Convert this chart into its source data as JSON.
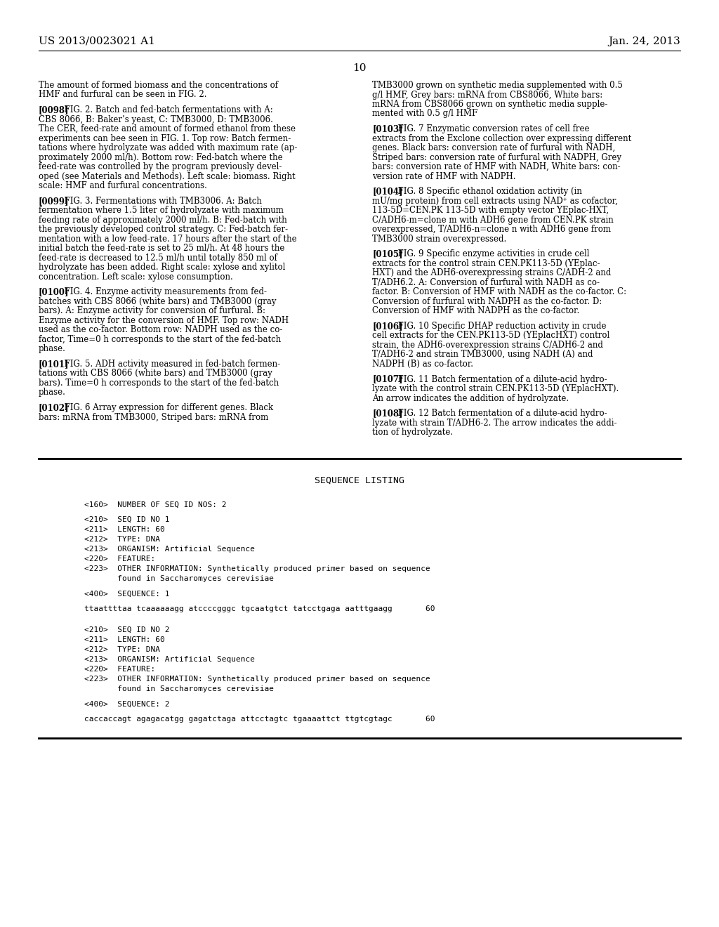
{
  "bg_color": "#ffffff",
  "patent_number": "US 2013/0023021 A1",
  "date": "Jan. 24, 2013",
  "page_number": "10",
  "header_font": 11,
  "body_font": 8.5,
  "mono_font": 8.0,
  "left_col_text": [
    "The amount of formed biomass and the concentrations of",
    "HMF and furfural can be seen in FIG. 2.",
    "",
    "[0098]  FIG. 2. Batch and fed-batch fermentations with A:",
    "CBS 8066, B: Baker’s yeast, C: TMB3000, D: TMB3006.",
    "The CER, feed-rate and amount of formed ethanol from these",
    "experiments can bee seen in FIG. 1. Top row: Batch fermen-",
    "tations where hydrolyzate was added with maximum rate (ap-",
    "proximately 2000 ml/h). Bottom row: Fed-batch where the",
    "feed-rate was controlled by the program previously devel-",
    "oped (see Materials and Methods). Left scale: biomass. Right",
    "scale: HMF and furfural concentrations.",
    "",
    "[0099]  FIG. 3. Fermentations with TMB3006. A: Batch",
    "fermentation where 1.5 liter of hydrolyzate with maximum",
    "feeding rate of approximately 2000 ml/h. B: Fed-batch with",
    "the previously developed control strategy. C: Fed-batch fer-",
    "mentation with a low feed-rate. 17 hours after the start of the",
    "initial batch the feed-rate is set to 25 ml/h. At 48 hours the",
    "feed-rate is decreased to 12.5 ml/h until totally 850 ml of",
    "hydrolyzate has been added. Right scale: xylose and xylitol",
    "concentration. Left scale: xylose consumption.",
    "",
    "[0100]  FIG. 4. Enzyme activity measurements from fed-",
    "batches with CBS 8066 (white bars) and TMB3000 (gray",
    "bars). A: Enzyme activity for conversion of furfural. B:",
    "Enzyme activity for the conversion of HMF. Top row: NADH",
    "used as the co-factor. Bottom row: NADPH used as the co-",
    "factor, Time=0 h corresponds to the start of the fed-batch",
    "phase.",
    "",
    "[0101]  FIG. 5. ADH activity measured in fed-batch fermen-",
    "tations with CBS 8066 (white bars) and TMB3000 (gray",
    "bars). Time=0 h corresponds to the start of the fed-batch",
    "phase.",
    "",
    "[0102]  FIG. 6 Array expression for different genes. Black",
    "bars: mRNA from TMB3000, Striped bars: mRNA from"
  ],
  "right_col_text": [
    "TMB3000 grown on synthetic media supplemented with 0.5",
    "g/l HMF, Grey bars: mRNA from CBS8066, White bars:",
    "mRNA from CBS8066 grown on synthetic media supple-",
    "mented with 0.5 g/l HMF",
    "",
    "[0103]  FIG. 7 Enzymatic conversion rates of cell free",
    "extracts from the Exclone collection over expressing different",
    "genes. Black bars: conversion rate of furfural with NADH,",
    "Striped bars: conversion rate of furfural with NADPH, Grey",
    "bars: conversion rate of HMF with NADH, White bars: con-",
    "version rate of HMF with NADPH.",
    "",
    "[0104]  FIG. 8 Specific ethanol oxidation activity (in",
    "mU/mg protein) from cell extracts using NAD⁺ as cofactor,",
    "113-5D=CEN.PK 113-5D with empty vector YEplac-HXT,",
    "C/ADH6-m=clone m with ADH6 gene from CEN.PK strain",
    "overexpressed, T/ADH6-n=clone n with ADH6 gene from",
    "TMB3000 strain overexpressed.",
    "",
    "[0105]  FIG. 9 Specific enzyme activities in crude cell",
    "extracts for the control strain CEN.PK113-5D (YEplac-",
    "HXT) and the ADH6-overexpressing strains C/ADH-2 and",
    "T/ADH6.2. A: Conversion of furfural with NADH as co-",
    "factor. B: Conversion of HMF with NADH as the co-factor. C:",
    "Conversion of furfural with NADPH as the co-factor. D:",
    "Conversion of HMF with NADPH as the co-factor.",
    "",
    "[0106]  FIG. 10 Specific DHAP reduction activity in crude",
    "cell extracts for the CEN.PK113-5D (YEplacHXT) control",
    "strain, the ADH6-overexpression strains C/ADH6-2 and",
    "T/ADH6-2 and strain TMB3000, using NADH (A) and",
    "NADPH (B) as co-factor.",
    "",
    "[0107]  FIG. 11 Batch fermentation of a dilute-acid hydro-",
    "lyzate with the control strain CEN.PK113-5D (YEplacHXT).",
    "An arrow indicates the addition of hydrolyzate.",
    "",
    "[0108]  FIG. 12 Batch fermentation of a dilute-acid hydro-",
    "lyzate with strain T/ADH6-2. The arrow indicates the addi-",
    "tion of hydrolyzate."
  ],
  "sequence_listing_title": "SEQUENCE LISTING",
  "sequence_lines": [
    "",
    "<160>  NUMBER OF SEQ ID NOS: 2",
    "",
    "<210>  SEQ ID NO 1",
    "<211>  LENGTH: 60",
    "<212>  TYPE: DNA",
    "<213>  ORGANISM: Artificial Sequence",
    "<220>  FEATURE:",
    "<223>  OTHER INFORMATION: Synthetically produced primer based on sequence",
    "       found in Saccharomyces cerevisiae",
    "",
    "<400>  SEQUENCE: 1",
    "",
    "ttaattttaa tcaaaaaagg atccccgggc tgcaatgtct tatcctgaga aatttgaagg       60",
    "",
    "",
    "<210>  SEQ ID NO 2",
    "<211>  LENGTH: 60",
    "<212>  TYPE: DNA",
    "<213>  ORGANISM: Artificial Sequence",
    "<220>  FEATURE:",
    "<223>  OTHER INFORMATION: Synthetically produced primer based on sequence",
    "       found in Saccharomyces cerevisiae",
    "",
    "<400>  SEQUENCE: 2",
    "",
    "caccaccagt agagacatgg gagatctaga attcctagtc tgaaaattct ttgtcgtagc       60"
  ]
}
